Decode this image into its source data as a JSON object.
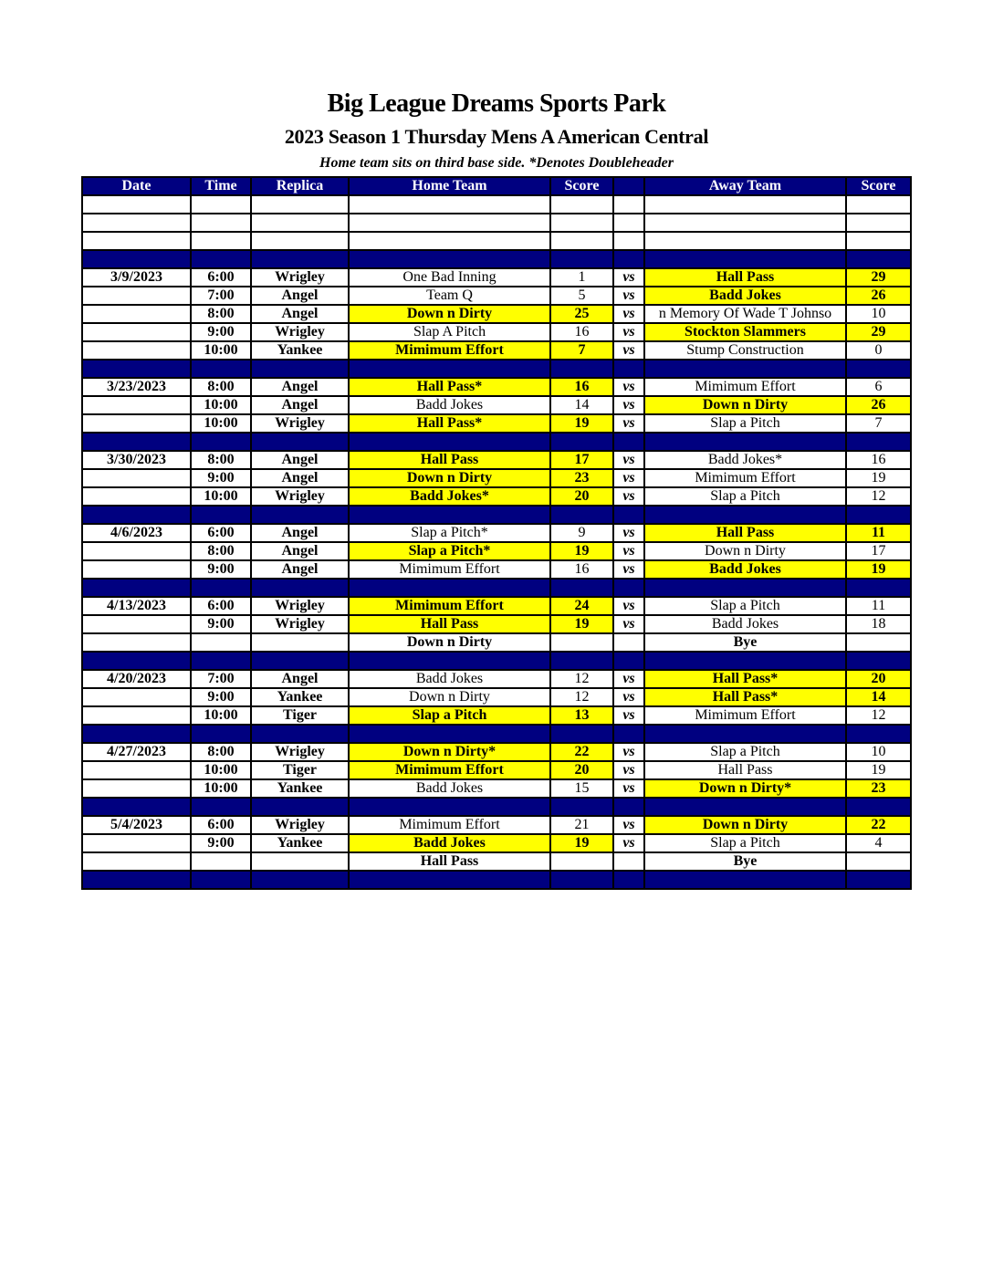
{
  "title": "Big League Dreams Sports Park",
  "subtitle": "2023 Season 1 Thursday Mens A American Central",
  "note": "Home team sits on third base side.  *Denotes Doubleheader",
  "colors": {
    "header": "#000080",
    "winner": "#ffff00"
  },
  "columns": [
    "Date",
    "Time",
    "Replica",
    "Home Team",
    "Score",
    "",
    "Away Team",
    "Score"
  ],
  "rows": [
    {
      "type": "blank"
    },
    {
      "type": "blank"
    },
    {
      "type": "blank"
    },
    {
      "type": "sep"
    },
    {
      "type": "game",
      "date": "3/9/2023",
      "time": "6:00",
      "replica": "Wrigley",
      "home": "One Bad Inning",
      "home_score": "1",
      "vs": "vs",
      "away": "Hall Pass",
      "away_score": "29",
      "winner": "away"
    },
    {
      "type": "game",
      "date": "",
      "time": "7:00",
      "replica": "Angel",
      "home": "Team Q",
      "home_score": "5",
      "vs": "vs",
      "away": "Badd Jokes",
      "away_score": "26",
      "winner": "away"
    },
    {
      "type": "game",
      "date": "",
      "time": "8:00",
      "replica": "Angel",
      "home": "Down n Dirty",
      "home_score": "25",
      "vs": "vs",
      "away": "n Memory Of Wade T Johnso",
      "away_score": "10",
      "winner": "home"
    },
    {
      "type": "game",
      "date": "",
      "time": "9:00",
      "replica": "Wrigley",
      "home": "Slap A Pitch",
      "home_score": "16",
      "vs": "vs",
      "away": "Stockton Slammers",
      "away_score": "29",
      "winner": "away"
    },
    {
      "type": "game",
      "date": "",
      "time": "10:00",
      "replica": "Yankee",
      "home": "Mimimum Effort",
      "home_score": "7",
      "vs": "vs",
      "away": "Stump Construction",
      "away_score": "0",
      "winner": "home"
    },
    {
      "type": "sep"
    },
    {
      "type": "game",
      "date": "3/23/2023",
      "time": "8:00",
      "replica": "Angel",
      "home": "Hall Pass*",
      "home_score": "16",
      "vs": "vs",
      "away": "Mimimum Effort",
      "away_score": "6",
      "winner": "home"
    },
    {
      "type": "game",
      "date": "",
      "time": "10:00",
      "replica": "Angel",
      "home": "Badd Jokes",
      "home_score": "14",
      "vs": "vs",
      "away": "Down n Dirty",
      "away_score": "26",
      "winner": "away"
    },
    {
      "type": "game",
      "date": "",
      "time": "10:00",
      "replica": "Wrigley",
      "home": "Hall Pass*",
      "home_score": "19",
      "vs": "vs",
      "away": "Slap a Pitch",
      "away_score": "7",
      "winner": "home"
    },
    {
      "type": "sep"
    },
    {
      "type": "game",
      "date": "3/30/2023",
      "time": "8:00",
      "replica": "Angel",
      "home": "Hall Pass",
      "home_score": "17",
      "vs": "vs",
      "away": "Badd Jokes*",
      "away_score": "16",
      "winner": "home"
    },
    {
      "type": "game",
      "date": "",
      "time": "9:00",
      "replica": "Angel",
      "home": "Down n Dirty",
      "home_score": "23",
      "vs": "vs",
      "away": "Mimimum Effort",
      "away_score": "19",
      "winner": "home"
    },
    {
      "type": "game",
      "date": "",
      "time": "10:00",
      "replica": "Wrigley",
      "home": "Badd Jokes*",
      "home_score": "20",
      "vs": "vs",
      "away": "Slap a Pitch",
      "away_score": "12",
      "winner": "home"
    },
    {
      "type": "sep"
    },
    {
      "type": "game",
      "date": "4/6/2023",
      "time": "6:00",
      "replica": "Angel",
      "home": "Slap a Pitch*",
      "home_score": "9",
      "vs": "vs",
      "away": "Hall Pass",
      "away_score": "11",
      "winner": "away"
    },
    {
      "type": "game",
      "date": "",
      "time": "8:00",
      "replica": "Angel",
      "home": "Slap a Pitch*",
      "home_score": "19",
      "vs": "vs",
      "away": "Down n Dirty",
      "away_score": "17",
      "winner": "home"
    },
    {
      "type": "game",
      "date": "",
      "time": "9:00",
      "replica": "Angel",
      "home": "Mimimum Effort",
      "home_score": "16",
      "vs": "vs",
      "away": "Badd Jokes",
      "away_score": "19",
      "winner": "away"
    },
    {
      "type": "sep"
    },
    {
      "type": "game",
      "date": "4/13/2023",
      "time": "6:00",
      "replica": "Wrigley",
      "home": "Mimimum Effort",
      "home_score": "24",
      "vs": "vs",
      "away": "Slap a Pitch",
      "away_score": "11",
      "winner": "home"
    },
    {
      "type": "game",
      "date": "",
      "time": "9:00",
      "replica": "Wrigley",
      "home": "Hall Pass",
      "home_score": "19",
      "vs": "vs",
      "away": "Badd Jokes",
      "away_score": "18",
      "winner": "home"
    },
    {
      "type": "bye",
      "home": "Down n Dirty",
      "away": "Bye"
    },
    {
      "type": "sep"
    },
    {
      "type": "game",
      "date": "4/20/2023",
      "time": "7:00",
      "replica": "Angel",
      "home": "Badd Jokes",
      "home_score": "12",
      "vs": "vs",
      "away": "Hall Pass*",
      "away_score": "20",
      "winner": "away"
    },
    {
      "type": "game",
      "date": "",
      "time": "9:00",
      "replica": "Yankee",
      "home": "Down n Dirty",
      "home_score": "12",
      "vs": "vs",
      "away": "Hall Pass*",
      "away_score": "14",
      "winner": "away"
    },
    {
      "type": "game",
      "date": "",
      "time": "10:00",
      "replica": "Tiger",
      "home": "Slap a Pitch",
      "home_score": "13",
      "vs": "vs",
      "away": "Mimimum Effort",
      "away_score": "12",
      "winner": "home"
    },
    {
      "type": "sep"
    },
    {
      "type": "game",
      "date": "4/27/2023",
      "time": "8:00",
      "replica": "Wrigley",
      "home": "Down n Dirty*",
      "home_score": "22",
      "vs": "vs",
      "away": "Slap a Pitch",
      "away_score": "10",
      "winner": "home"
    },
    {
      "type": "game",
      "date": "",
      "time": "10:00",
      "replica": "Tiger",
      "home": "Mimimum Effort",
      "home_score": "20",
      "vs": "vs",
      "away": "Hall Pass",
      "away_score": "19",
      "winner": "home"
    },
    {
      "type": "game",
      "date": "",
      "time": "10:00",
      "replica": "Yankee",
      "home": "Badd Jokes",
      "home_score": "15",
      "vs": "vs",
      "away": "Down n Dirty*",
      "away_score": "23",
      "winner": "away"
    },
    {
      "type": "sep"
    },
    {
      "type": "game",
      "date": "5/4/2023",
      "time": "6:00",
      "replica": "Wrigley",
      "home": "Mimimum Effort",
      "home_score": "21",
      "vs": "vs",
      "away": "Down n Dirty",
      "away_score": "22",
      "winner": "away"
    },
    {
      "type": "game",
      "date": "",
      "time": "9:00",
      "replica": "Yankee",
      "home": "Badd Jokes",
      "home_score": "19",
      "vs": "vs",
      "away": "Slap a Pitch",
      "away_score": "4",
      "winner": "home"
    },
    {
      "type": "bye",
      "home": "Hall Pass",
      "away": "Bye"
    },
    {
      "type": "sep"
    }
  ]
}
